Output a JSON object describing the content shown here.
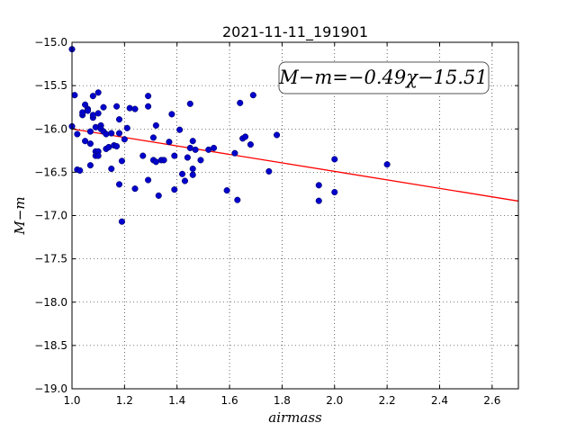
{
  "chart_data": {
    "type": "scatter",
    "title": "2021-11-11_191901",
    "xlabel": "airmass",
    "ylabel": "M−m",
    "xlim": [
      1.0,
      2.7
    ],
    "ylim": [
      -19.0,
      -15.0
    ],
    "y_inverted": true,
    "grid": true,
    "x_ticks": [
      "1.0",
      "1.2",
      "1.4",
      "1.6",
      "1.8",
      "2.0",
      "2.2",
      "2.4",
      "2.6"
    ],
    "y_ticks": [
      "−15.0",
      "−15.5",
      "−16.0",
      "−16.5",
      "−17.0",
      "−17.5",
      "−18.0",
      "−18.5",
      "−19.0"
    ],
    "annotation": "M−m=−0.49χ−15.51",
    "fit": {
      "slope": -0.49,
      "intercept": -15.51,
      "color": "#ff0000"
    },
    "point_color": "#0000cc",
    "points": [
      [
        1.0,
        -15.08
      ],
      [
        1.0,
        -15.97
      ],
      [
        1.01,
        -15.61
      ],
      [
        1.02,
        -16.06
      ],
      [
        1.02,
        -16.47
      ],
      [
        1.03,
        -16.48
      ],
      [
        1.04,
        -15.84
      ],
      [
        1.04,
        -15.81
      ],
      [
        1.05,
        -16.14
      ],
      [
        1.05,
        -15.72
      ],
      [
        1.06,
        -15.77
      ],
      [
        1.06,
        -15.79
      ],
      [
        1.07,
        -16.17
      ],
      [
        1.07,
        -16.03
      ],
      [
        1.08,
        -15.87
      ],
      [
        1.07,
        -16.42
      ],
      [
        1.08,
        -15.84
      ],
      [
        1.08,
        -15.62
      ],
      [
        1.09,
        -15.98
      ],
      [
        1.09,
        -16.26
      ],
      [
        1.09,
        -16.31
      ],
      [
        1.1,
        -15.58
      ],
      [
        1.1,
        -15.82
      ],
      [
        1.1,
        -16.26
      ],
      [
        1.1,
        -16.31
      ],
      [
        1.11,
        -15.96
      ],
      [
        1.11,
        -16.0
      ],
      [
        1.12,
        -15.75
      ],
      [
        1.12,
        -16.03
      ],
      [
        1.13,
        -16.06
      ],
      [
        1.13,
        -16.23
      ],
      [
        1.14,
        -16.21
      ],
      [
        1.15,
        -16.05
      ],
      [
        1.15,
        -16.46
      ],
      [
        1.16,
        -16.19
      ],
      [
        1.17,
        -15.74
      ],
      [
        1.17,
        -16.2
      ],
      [
        1.18,
        -15.89
      ],
      [
        1.18,
        -16.05
      ],
      [
        1.18,
        -16.64
      ],
      [
        1.19,
        -16.37
      ],
      [
        1.19,
        -17.07
      ],
      [
        1.2,
        -16.12
      ],
      [
        1.21,
        -15.99
      ],
      [
        1.22,
        -15.76
      ],
      [
        1.24,
        -15.77
      ],
      [
        1.24,
        -16.69
      ],
      [
        1.27,
        -16.31
      ],
      [
        1.29,
        -15.62
      ],
      [
        1.29,
        -15.74
      ],
      [
        1.29,
        -16.59
      ],
      [
        1.31,
        -16.1
      ],
      [
        1.31,
        -16.36
      ],
      [
        1.32,
        -15.96
      ],
      [
        1.32,
        -16.38
      ],
      [
        1.33,
        -16.77
      ],
      [
        1.34,
        -16.36
      ],
      [
        1.35,
        -16.36
      ],
      [
        1.37,
        -16.15
      ],
      [
        1.38,
        -15.83
      ],
      [
        1.39,
        -16.31
      ],
      [
        1.39,
        -16.7
      ],
      [
        1.41,
        -16.01
      ],
      [
        1.42,
        -16.52
      ],
      [
        1.43,
        -16.6
      ],
      [
        1.44,
        -16.33
      ],
      [
        1.45,
        -15.71
      ],
      [
        1.45,
        -16.22
      ],
      [
        1.46,
        -16.14
      ],
      [
        1.46,
        -16.46
      ],
      [
        1.46,
        -16.53
      ],
      [
        1.47,
        -16.24
      ],
      [
        1.49,
        -16.36
      ],
      [
        1.52,
        -16.24
      ],
      [
        1.54,
        -16.22
      ],
      [
        1.59,
        -16.71
      ],
      [
        1.62,
        -16.28
      ],
      [
        1.63,
        -16.82
      ],
      [
        1.64,
        -15.7
      ],
      [
        1.65,
        -16.11
      ],
      [
        1.66,
        -16.09
      ],
      [
        1.68,
        -16.18
      ],
      [
        1.69,
        -15.61
      ],
      [
        1.75,
        -16.49
      ],
      [
        1.78,
        -16.07
      ],
      [
        1.94,
        -16.65
      ],
      [
        1.94,
        -16.83
      ],
      [
        2.0,
        -16.35
      ],
      [
        2.0,
        -16.73
      ],
      [
        2.2,
        -16.41
      ]
    ]
  }
}
